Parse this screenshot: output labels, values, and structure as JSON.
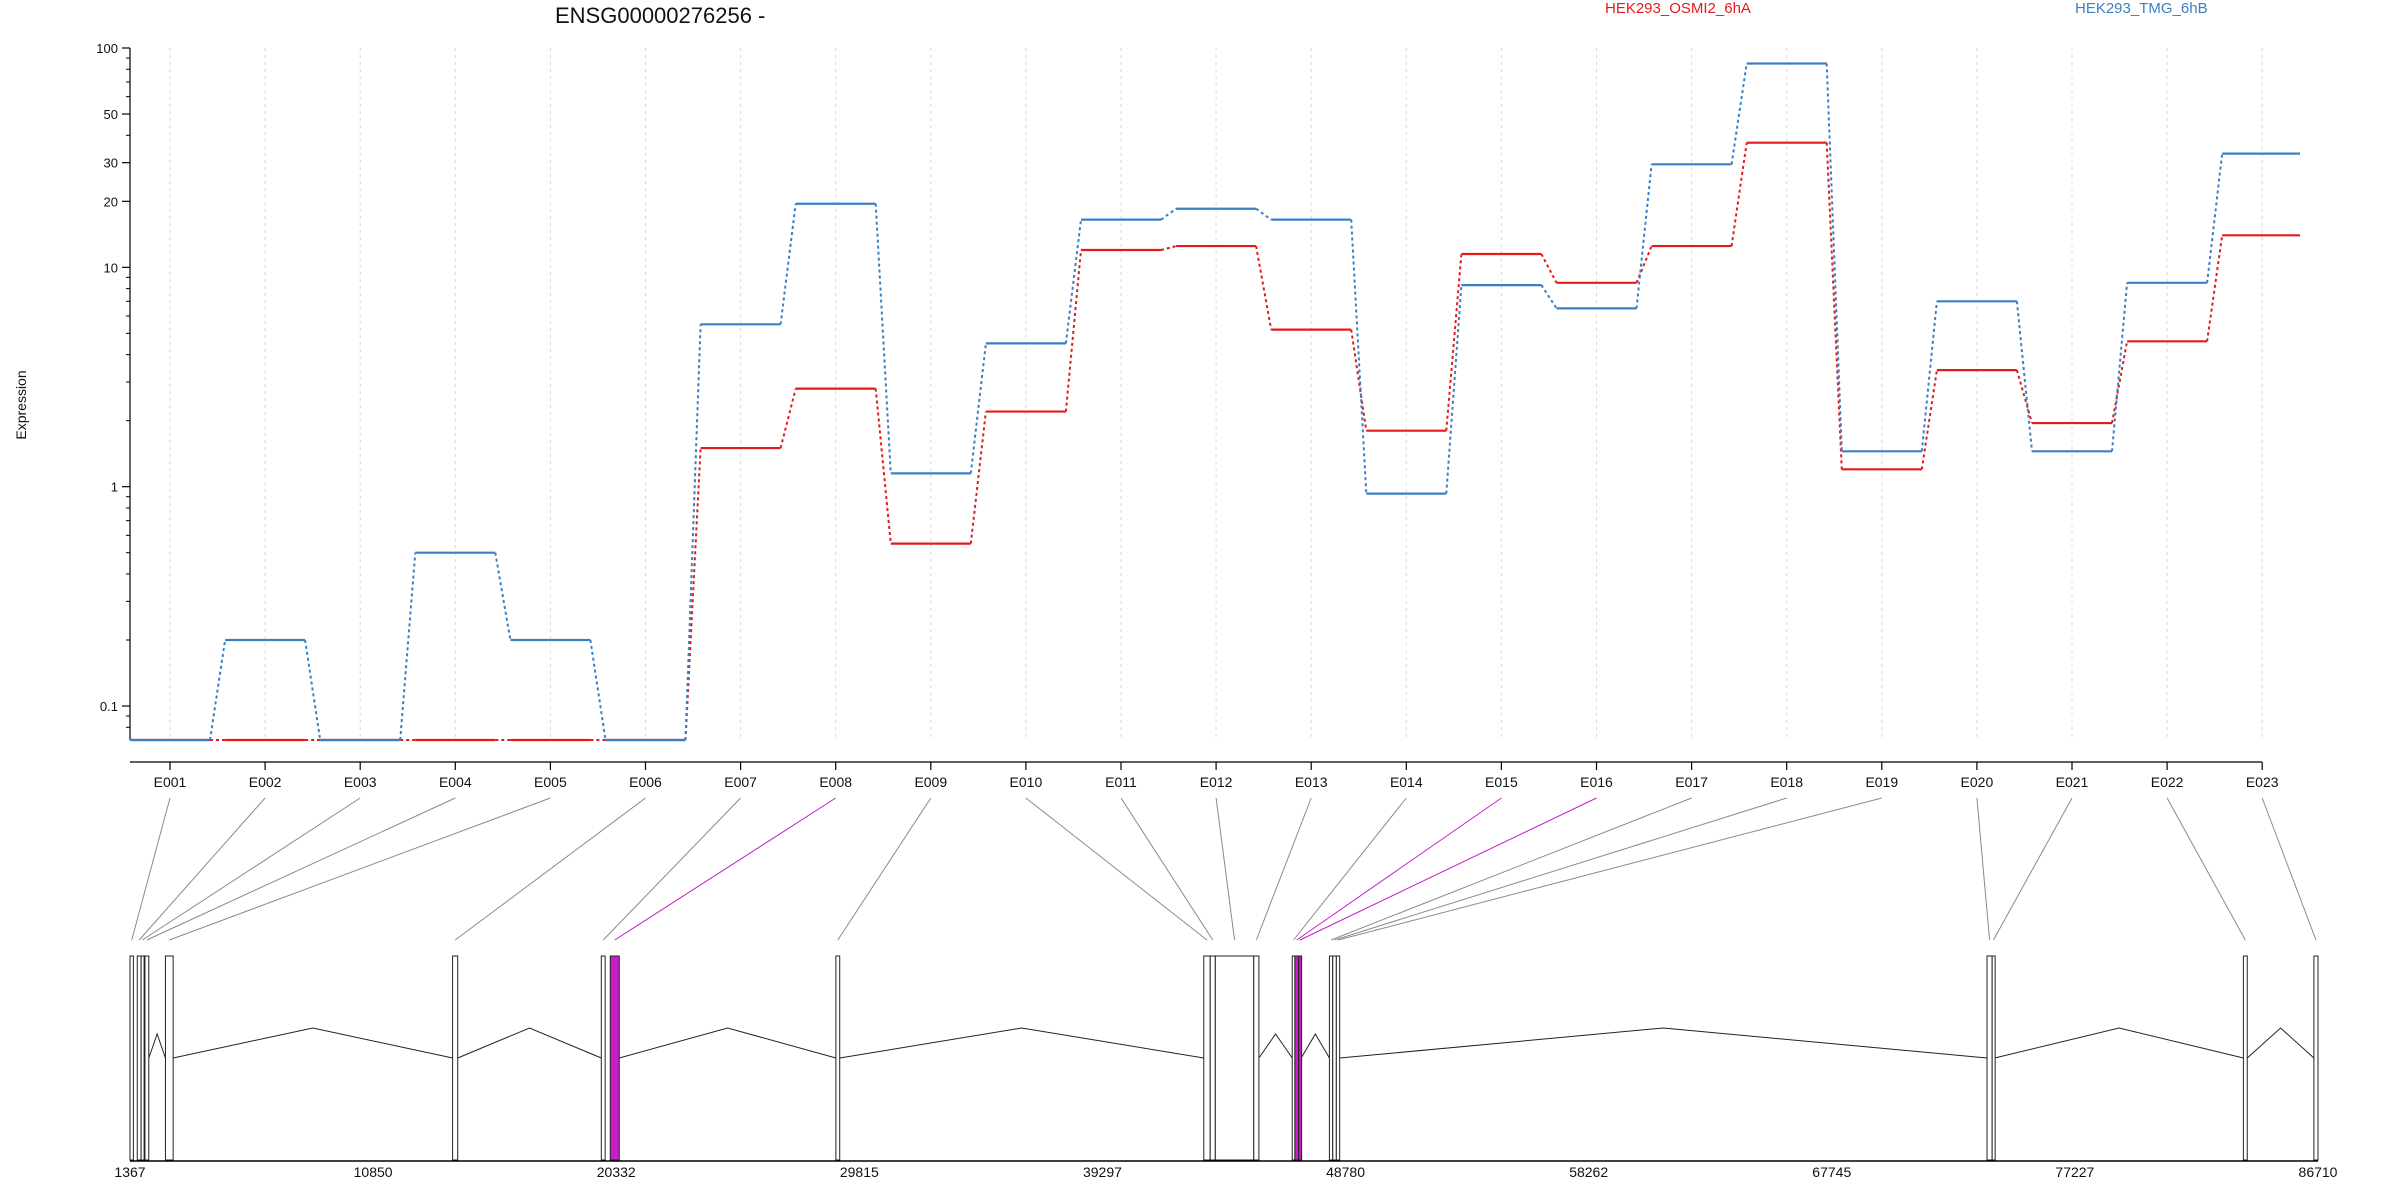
{
  "chart_data": {
    "type": "line",
    "title": "ENSG00000276256 -",
    "ylabel": "Expression",
    "xlabel": "",
    "y_scale": "log",
    "ylim": [
      0.07,
      100
    ],
    "y_ticks": [
      0.1,
      1,
      10,
      20,
      30,
      50,
      100
    ],
    "y_tick_labels": [
      "0.1",
      "1",
      "10",
      "20",
      "30",
      "50",
      "100"
    ],
    "grid": "vertical dotted",
    "legend_position": "top",
    "categories": [
      "E001",
      "E002",
      "E003",
      "E004",
      "E005",
      "E006",
      "E007",
      "E008",
      "E009",
      "E010",
      "E011",
      "E012",
      "E013",
      "E014",
      "E015",
      "E016",
      "E017",
      "E018",
      "E019",
      "E020",
      "E021",
      "E022",
      "E023"
    ],
    "series": [
      {
        "name": "HEK293_OSMI2_6hA",
        "color": "#e31a1c",
        "values": [
          0.07,
          0.07,
          0.07,
          0.07,
          0.07,
          0.07,
          1.5,
          2.8,
          0.55,
          2.2,
          12,
          12.5,
          5.2,
          1.8,
          11.5,
          8.5,
          12.5,
          37,
          1.2,
          3.4,
          1.95,
          4.6,
          14
        ]
      },
      {
        "name": "HEK293_TMG_6hB",
        "color": "#3a7fc4",
        "values": [
          0.07,
          0.2,
          0.07,
          0.5,
          0.2,
          0.07,
          5.5,
          19.5,
          1.15,
          4.5,
          16.5,
          18.5,
          16.5,
          0.93,
          8.3,
          6.5,
          29.5,
          85,
          1.45,
          7,
          1.45,
          8.5,
          33
        ]
      }
    ],
    "gene_model": {
      "coordinate_ticks": [
        "1367",
        "10850",
        "20332",
        "29815",
        "39297",
        "48780",
        "58262",
        "67745",
        "77227",
        "86710"
      ],
      "coordinate_range": [
        1367,
        86710
      ],
      "exons": [
        {
          "id": "E001",
          "start": 1367,
          "end": 1500,
          "highlight": false
        },
        {
          "id": "E002",
          "start": 1650,
          "end": 1800,
          "highlight": false
        },
        {
          "id": "E003",
          "start": 1800,
          "end": 1900,
          "highlight": false
        },
        {
          "id": "E004",
          "start": 1950,
          "end": 2100,
          "highlight": false
        },
        {
          "id": "E005",
          "start": 2750,
          "end": 3050,
          "highlight": false
        },
        {
          "id": "E006",
          "start": 13950,
          "end": 14150,
          "highlight": false
        },
        {
          "id": "E007",
          "start": 19750,
          "end": 19900,
          "highlight": false
        },
        {
          "id": "E008",
          "start": 20100,
          "end": 20450,
          "highlight": true
        },
        {
          "id": "E009",
          "start": 28900,
          "end": 29050,
          "highlight": false
        },
        {
          "id": "E010",
          "start": 43250,
          "end": 43500,
          "highlight": false
        },
        {
          "id": "E011",
          "start": 43500,
          "end": 43700,
          "highlight": false
        },
        {
          "id": "E012",
          "start": 43700,
          "end": 45200,
          "highlight": false
        },
        {
          "id": "E013",
          "start": 45200,
          "end": 45400,
          "highlight": false
        },
        {
          "id": "E014",
          "start": 46700,
          "end": 46800,
          "highlight": false
        },
        {
          "id": "E015",
          "start": 46800,
          "end": 46950,
          "highlight": true
        },
        {
          "id": "E016",
          "start": 46950,
          "end": 47050,
          "highlight": true
        },
        {
          "id": "E017",
          "start": 48150,
          "end": 48280,
          "highlight": false
        },
        {
          "id": "E018",
          "start": 48280,
          "end": 48420,
          "highlight": false
        },
        {
          "id": "E019",
          "start": 48420,
          "end": 48550,
          "highlight": false
        },
        {
          "id": "E020",
          "start": 73800,
          "end": 74000,
          "highlight": false
        },
        {
          "id": "E021",
          "start": 74000,
          "end": 74100,
          "highlight": false
        },
        {
          "id": "E022",
          "start": 83800,
          "end": 83950,
          "highlight": false
        },
        {
          "id": "E023",
          "start": 86550,
          "end": 86710,
          "highlight": false
        }
      ],
      "retained_block": {
        "start": 43500,
        "end": 45300
      },
      "highlight_color": "#c71ec7",
      "exon_fill": "#ffffff",
      "block_fill": "#cccccc"
    }
  }
}
